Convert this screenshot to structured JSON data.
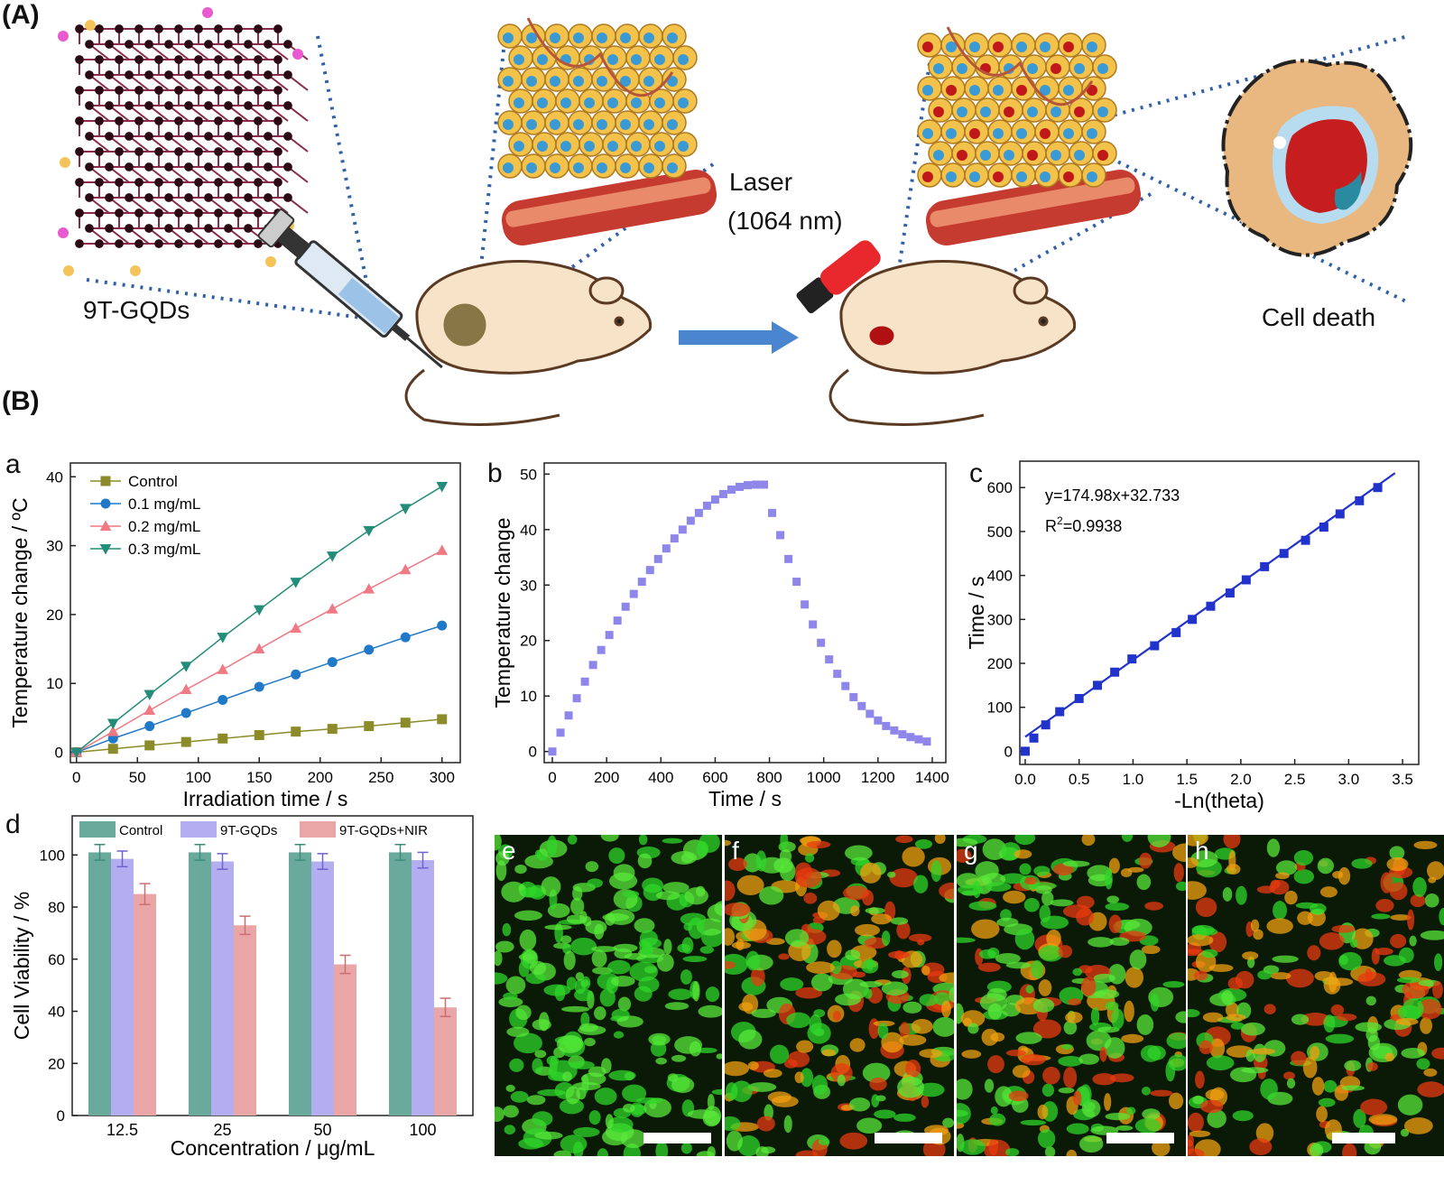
{
  "panel_labels": {
    "A": "(A)",
    "B": "(B)"
  },
  "schematic": {
    "material_label": "9T-GQDs",
    "laser_label_1": "Laser",
    "laser_label_2": "(1064 nm)",
    "outcome_label": "Cell death"
  },
  "subpanels": {
    "a": "a",
    "b": "b",
    "c": "c",
    "d": "d",
    "e": "e",
    "f": "f",
    "g": "g",
    "h": "h"
  },
  "colors": {
    "control_line": "#8b8b2a",
    "c01": "#1f78c8",
    "c02": "#f07a84",
    "c03": "#238d7a",
    "heating": "#8f86ea",
    "fit": "#2233cc",
    "bar_control": "#6aaa9c",
    "bar_gqds": "#b3aef0",
    "bar_nir": "#eaa6a6",
    "arrow": "#4a86d0",
    "dotted": "#3060a8"
  },
  "chart_data": [
    {
      "type": "line",
      "id": "a",
      "xlabel": "Irradiation time / s",
      "ylabel": "Temperature change / ºC",
      "xlim": [
        -5,
        315
      ],
      "ylim": [
        -1.5,
        42
      ],
      "xticks": [
        0,
        50,
        100,
        150,
        200,
        250,
        300
      ],
      "yticks": [
        0,
        10,
        20,
        30,
        40
      ],
      "legend_position": "top-left",
      "x": [
        0,
        30,
        60,
        90,
        120,
        150,
        180,
        210,
        240,
        270,
        300
      ],
      "series": [
        {
          "name": "Control",
          "marker": "square",
          "color": "#8b8b2a",
          "values": [
            0,
            0.5,
            1.0,
            1.5,
            2.0,
            2.5,
            3.0,
            3.4,
            3.8,
            4.3,
            4.8
          ]
        },
        {
          "name": "0.1 mg/mL",
          "marker": "circle",
          "color": "#1f78c8",
          "values": [
            0,
            2.0,
            3.8,
            5.7,
            7.6,
            9.5,
            11.3,
            13.1,
            14.9,
            16.7,
            18.4
          ]
        },
        {
          "name": "0.2 mg/mL",
          "marker": "triangle-up",
          "color": "#f07a84",
          "values": [
            0,
            3.0,
            6.1,
            9.1,
            12.0,
            15.0,
            18.0,
            20.8,
            23.7,
            26.5,
            29.3
          ]
        },
        {
          "name": "0.3 mg/mL",
          "marker": "triangle-down",
          "color": "#238d7a",
          "values": [
            0,
            4.2,
            8.4,
            12.5,
            16.7,
            20.7,
            24.7,
            28.5,
            32.2,
            35.4,
            38.6
          ]
        }
      ]
    },
    {
      "type": "scatter",
      "id": "b",
      "xlabel": "Time / s",
      "ylabel": "Temperature change",
      "xlim": [
        -30,
        1450
      ],
      "ylim": [
        -2,
        52
      ],
      "xticks": [
        0,
        200,
        400,
        600,
        800,
        1000,
        1200,
        1400
      ],
      "yticks": [
        0,
        10,
        20,
        30,
        40,
        50
      ],
      "x": [
        0,
        30,
        60,
        90,
        120,
        150,
        180,
        210,
        240,
        270,
        300,
        330,
        360,
        390,
        420,
        450,
        480,
        510,
        540,
        570,
        600,
        630,
        660,
        690,
        720,
        750,
        780,
        810,
        840,
        870,
        900,
        930,
        960,
        990,
        1020,
        1050,
        1080,
        1110,
        1140,
        1170,
        1200,
        1230,
        1260,
        1290,
        1320,
        1350,
        1380
      ],
      "y": [
        0,
        3.4,
        6.5,
        9.6,
        12.6,
        15.6,
        18.3,
        21.0,
        23.6,
        26.1,
        28.4,
        30.6,
        32.7,
        34.7,
        36.6,
        38.4,
        40.0,
        41.6,
        43.0,
        44.3,
        45.4,
        46.4,
        47.2,
        47.7,
        48.0,
        48.1,
        48.1,
        43.0,
        39.0,
        34.7,
        30.6,
        26.5,
        22.9,
        19.6,
        16.6,
        14.0,
        11.8,
        9.8,
        8.2,
        6.8,
        5.6,
        4.6,
        3.8,
        3.1,
        2.6,
        2.2,
        1.8
      ]
    },
    {
      "type": "scatter",
      "id": "c",
      "xlabel": "-Ln(theta)",
      "ylabel": "Time / s",
      "xlim": [
        -0.05,
        3.65
      ],
      "ylim": [
        -30,
        660
      ],
      "xticks": [
        0.0,
        0.5,
        1.0,
        1.5,
        2.0,
        2.5,
        3.0,
        3.5
      ],
      "yticks": [
        0,
        100,
        200,
        300,
        400,
        500,
        600
      ],
      "annotation_equation": "y=174.98x+32.733",
      "annotation_r2_prefix": "R",
      "annotation_r2_sup": "2",
      "annotation_r2_value": "=0.9938",
      "fit": {
        "slope": 174.98,
        "intercept": 32.733,
        "x_range": [
          0.0,
          3.43
        ]
      },
      "x": [
        0.0,
        0.08,
        0.19,
        0.32,
        0.5,
        0.67,
        0.83,
        0.99,
        1.2,
        1.4,
        1.55,
        1.72,
        1.9,
        2.05,
        2.22,
        2.4,
        2.6,
        2.77,
        2.92,
        3.1,
        3.27
      ],
      "y": [
        0,
        30,
        60,
        90,
        120,
        150,
        180,
        210,
        240,
        270,
        300,
        330,
        360,
        390,
        420,
        450,
        480,
        510,
        540,
        570,
        600
      ]
    },
    {
      "type": "bar",
      "id": "d",
      "xlabel": "Concentration / μg/mL",
      "ylabel": "Cell Viability / %",
      "ylim": [
        0,
        115
      ],
      "yticks": [
        0,
        20,
        40,
        60,
        80,
        100
      ],
      "legend_position": "top",
      "categories": [
        "12.5",
        "25",
        "50",
        "100"
      ],
      "series": [
        {
          "name": "Control",
          "color": "#6aaa9c",
          "values": [
            101,
            101,
            101,
            101
          ],
          "errors": [
            3,
            3,
            3,
            3
          ]
        },
        {
          "name": "9T-GQDs",
          "color": "#b3aef0",
          "values": [
            98.5,
            97.5,
            97.5,
            98
          ],
          "errors": [
            3,
            3,
            3,
            3
          ]
        },
        {
          "name": "9T-GQDs+NIR",
          "color": "#eaa6a6",
          "values": [
            85,
            73,
            58,
            41.5
          ],
          "errors": [
            4,
            3.5,
            3.5,
            3.5
          ]
        }
      ]
    }
  ]
}
